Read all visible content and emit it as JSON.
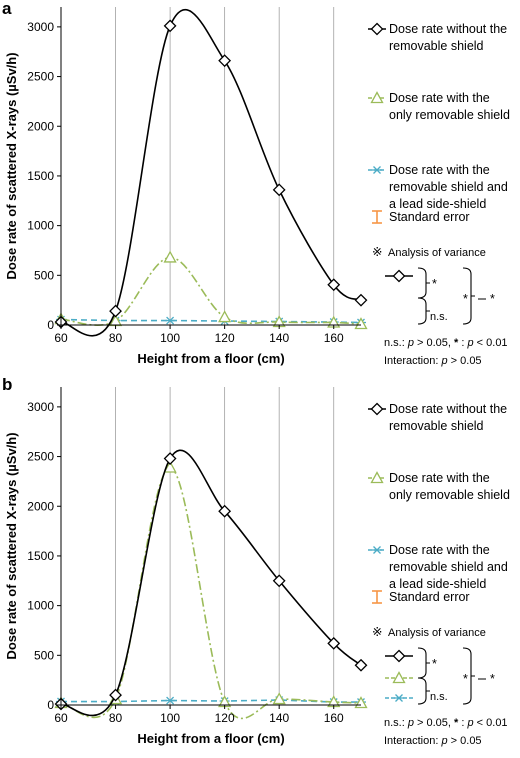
{
  "chart_data": [
    {
      "panel": "a",
      "type": "line",
      "xlabel": "Height from a floor (cm)",
      "ylabel": "Dose rate of scattered X-rays (µSv/h)",
      "xticks": [
        60,
        80,
        100,
        120,
        140,
        160
      ],
      "yticks": [
        0,
        500,
        1000,
        1500,
        2000,
        2500,
        3000
      ],
      "xlim": [
        60,
        170
      ],
      "ylim": [
        0,
        3200
      ],
      "grid": "vertical",
      "legend_position": "right",
      "series": [
        {
          "name": "Dose rate without the removable shield",
          "color": "#000000",
          "marker": "diamond",
          "dash": "solid",
          "curve": "smooth",
          "x": [
            60,
            80,
            100,
            120,
            140,
            160,
            170
          ],
          "y": [
            30,
            140,
            3010,
            2660,
            1360,
            405,
            250
          ]
        },
        {
          "name": "Dose rate with the only removable shield",
          "color": "#9bbb59",
          "marker": "triangle",
          "dash": "dashdot",
          "curve": "smooth",
          "x": [
            60,
            80,
            100,
            120,
            140,
            160,
            170
          ],
          "y": [
            60,
            40,
            680,
            80,
            30,
            25,
            10
          ]
        },
        {
          "name": "Dose rate with the removable shield and a lead side-shield",
          "color": "#4bacc6",
          "marker": "asterisk",
          "dash": "dashed",
          "curve": "linear",
          "x": [
            60,
            80,
            100,
            120,
            140,
            160,
            170
          ],
          "y": [
            55,
            45,
            45,
            40,
            35,
            30,
            25
          ]
        }
      ],
      "legend_labels": [
        [
          "Dose rate without the",
          "removable shield"
        ],
        [
          "Dose rate with the",
          "only removable shield"
        ],
        [
          "Dose rate with the",
          "removable shield and",
          "a lead side-shield"
        ]
      ],
      "error_label": "Standard error",
      "anova_title": "Analysis of variance",
      "anova_mark": "*",
      "anova_ns": "n.s.",
      "stats_line1": [
        "n.s.: ",
        "p",
        " > 0.05, ",
        "*",
        " : ",
        "p",
        " < 0.01"
      ],
      "stats_line2": [
        "Interaction: ",
        "p",
        " > 0.05"
      ]
    },
    {
      "panel": "b",
      "type": "line",
      "xlabel": "Height from a floor (cm)",
      "ylabel": "Dose rate of scattered X-rays (µSv/h)",
      "xticks": [
        60,
        80,
        100,
        120,
        140,
        160
      ],
      "yticks": [
        0,
        500,
        1000,
        1500,
        2000,
        2500,
        3000
      ],
      "xlim": [
        60,
        170
      ],
      "ylim": [
        0,
        3200
      ],
      "grid": "vertical",
      "legend_position": "right",
      "series": [
        {
          "name": "Dose rate without the removable shield",
          "color": "#000000",
          "marker": "diamond",
          "dash": "solid",
          "curve": "smooth",
          "x": [
            60,
            80,
            100,
            120,
            140,
            160,
            170
          ],
          "y": [
            10,
            100,
            2480,
            1950,
            1250,
            620,
            400
          ]
        },
        {
          "name": "Dose rate with the only removable shield",
          "color": "#9bbb59",
          "marker": "triangle",
          "dash": "dashdot",
          "curve": "smooth",
          "x": [
            60,
            80,
            100,
            120,
            140,
            160,
            170
          ],
          "y": [
            20,
            60,
            2390,
            30,
            60,
            30,
            20
          ]
        },
        {
          "name": "Dose rate with the removable shield and a lead side-shield",
          "color": "#4bacc6",
          "marker": "asterisk",
          "dash": "dashed",
          "curve": "linear",
          "x": [
            60,
            80,
            100,
            120,
            140,
            160,
            170
          ],
          "y": [
            35,
            35,
            45,
            40,
            50,
            30,
            30
          ]
        }
      ],
      "legend_labels": [
        [
          "Dose rate without the",
          "removable shield"
        ],
        [
          "Dose rate with the",
          "only removable shield"
        ],
        [
          "Dose rate with the",
          "removable shield and",
          "a lead side-shield"
        ]
      ],
      "error_label": "Standard error",
      "anova_title": "Analysis of variance",
      "anova_mark": "*",
      "anova_ns": "n.s.",
      "stats_line1": [
        "n.s.: ",
        "p",
        " > 0.05, ",
        "*",
        " : ",
        "p",
        " < 0.01"
      ],
      "stats_line2": [
        "Interaction: ",
        "p",
        " > 0.05"
      ]
    }
  ],
  "ui": {
    "reference_mark": "※",
    "colors": {
      "error_bar": "#f79646",
      "grid": "#a0a0a0",
      "axis": "#000000"
    }
  }
}
